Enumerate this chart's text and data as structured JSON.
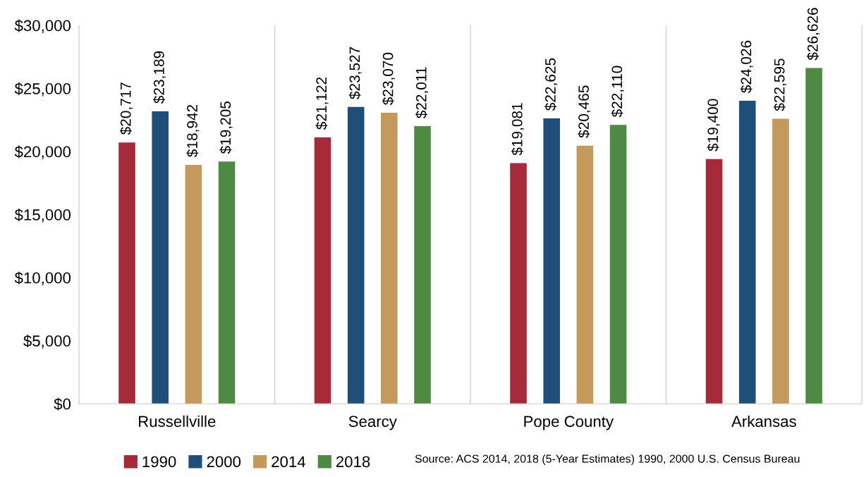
{
  "chart_data": {
    "type": "bar",
    "categories": [
      "Russellville",
      "Searcy",
      "Pope County",
      "Arkansas"
    ],
    "series": [
      {
        "name": "1990",
        "color": "#a52a3a",
        "values": [
          20717,
          21122,
          19081,
          19400
        ],
        "value_labels": [
          "$20,717",
          "$21,122",
          "$19,081",
          "$19,400"
        ]
      },
      {
        "name": "2000",
        "color": "#1f4e79",
        "values": [
          23189,
          23527,
          22625,
          24026
        ],
        "value_labels": [
          "$23,189",
          "$23,527",
          "$22,625",
          "$24,026"
        ]
      },
      {
        "name": "2014",
        "color": "#c49a5c",
        "values": [
          18942,
          23070,
          20465,
          22595
        ],
        "value_labels": [
          "$18,942",
          "$23,070",
          "$20,465",
          "$22,595"
        ]
      },
      {
        "name": "2018",
        "color": "#4e8a43",
        "values": [
          19205,
          22011,
          22110,
          26626
        ],
        "value_labels": [
          "$19,205",
          "$22,011",
          "$22,110",
          "$26,626"
        ]
      }
    ],
    "ylim": [
      0,
      30000
    ],
    "yticks": [
      {
        "value": 0,
        "label": "$0"
      },
      {
        "value": 5000,
        "label": "$5,000"
      },
      {
        "value": 10000,
        "label": "$10,000"
      },
      {
        "value": 15000,
        "label": "$15,000"
      },
      {
        "value": 20000,
        "label": "$20,000"
      },
      {
        "value": 25000,
        "label": "$25,000"
      },
      {
        "value": 30000,
        "label": "$30,000"
      }
    ],
    "grid": "x",
    "legend": "bottom",
    "annotations": [
      "Source: ACS 2014, 2018 (5-Year Estimates) 1990, 2000 U.S. Census Bureau"
    ]
  }
}
